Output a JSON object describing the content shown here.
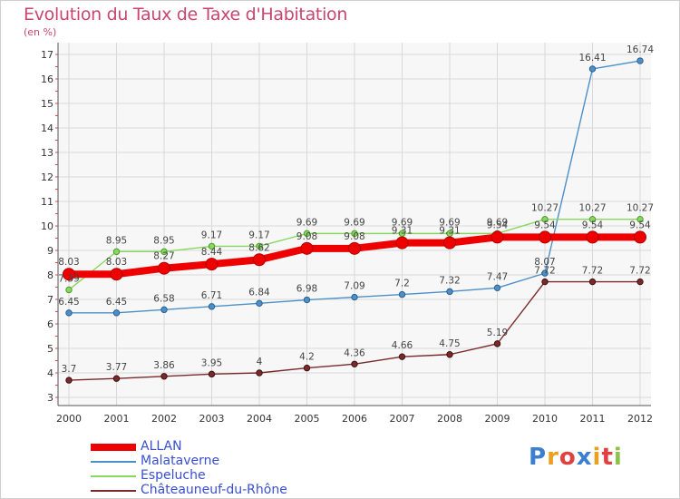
{
  "title": "Evolution du Taux de Taxe d'Habitation",
  "unit": "(en %)",
  "logo": "Proxiti",
  "chart_data": {
    "type": "line",
    "x": [
      "2000",
      "2001",
      "2002",
      "2003",
      "2004",
      "2005",
      "2006",
      "2007",
      "2008",
      "2009",
      "2010",
      "2011",
      "2012"
    ],
    "ylim": [
      3,
      17
    ],
    "yticks": [
      3,
      4,
      5,
      6,
      7,
      8,
      9,
      10,
      11,
      12,
      13,
      14,
      15,
      16,
      17
    ],
    "grid": true,
    "legend_position": "bottom-left",
    "series": [
      {
        "name": "ALLAN",
        "color": "#ee0000",
        "values": [
          8.03,
          8.03,
          8.27,
          8.44,
          8.62,
          9.08,
          9.08,
          9.31,
          9.31,
          9.54,
          9.54,
          9.54,
          9.54
        ],
        "labels": [
          "8.03",
          "8.03",
          "8.27",
          "8.44",
          "8.62",
          "9.08",
          "9.08",
          "9.31",
          "9.31",
          "9.54",
          "9.54",
          "9.54",
          "9.54"
        ]
      },
      {
        "name": "Malataverne",
        "color": "#4d8fc8",
        "values": [
          6.45,
          6.45,
          6.58,
          6.71,
          6.84,
          6.98,
          7.09,
          7.2,
          7.32,
          7.47,
          8.07,
          16.41,
          16.74
        ],
        "labels": [
          "6.45",
          "6.45",
          "6.58",
          "6.71",
          "6.84",
          "6.98",
          "7.09",
          "7.2",
          "7.32",
          "7.47",
          "8.07",
          "16.41",
          "16.74"
        ]
      },
      {
        "name": "Espeluche",
        "color": "#88d860",
        "values": [
          7.39,
          8.95,
          8.95,
          9.17,
          9.17,
          9.69,
          9.69,
          9.69,
          9.69,
          9.69,
          10.27,
          10.27,
          10.27
        ],
        "labels": [
          "7.39",
          "8.95",
          "8.95",
          "9.17",
          "9.17",
          "9.69",
          "9.69",
          "9.69",
          "9.69",
          "9.69",
          "10.27",
          "10.27",
          "10.27"
        ]
      },
      {
        "name": "Châteauneuf-du-Rhône",
        "color": "#7a2a2a",
        "values": [
          3.7,
          3.77,
          3.86,
          3.95,
          4.0,
          4.2,
          4.36,
          4.66,
          4.75,
          5.19,
          7.72,
          7.72,
          7.72
        ],
        "labels": [
          "3.7",
          "3.77",
          "3.86",
          "3.95",
          "4",
          "4.2",
          "4.36",
          "4.66",
          "4.75",
          "5.19",
          "7.72",
          "7.72",
          "7.72"
        ]
      }
    ]
  }
}
